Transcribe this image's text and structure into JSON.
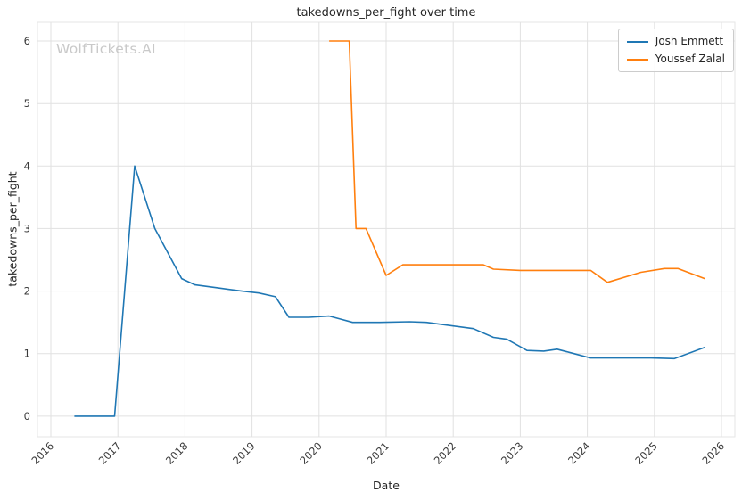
{
  "watermark": "WolfTickets.AI",
  "chart_data": {
    "type": "line",
    "title": "takedowns_per_fight over time",
    "xlabel": "Date",
    "ylabel": "takedowns_per_fight",
    "xlim": [
      2015.8,
      2026.2
    ],
    "ylim": [
      -0.33,
      6.3
    ],
    "xticks": [
      2016,
      2017,
      2018,
      2019,
      2020,
      2021,
      2022,
      2023,
      2024,
      2025,
      2026
    ],
    "yticks": [
      0,
      1,
      2,
      3,
      4,
      5,
      6
    ],
    "grid": true,
    "grid_color": "#e1e1e1",
    "legend_position": "upper right",
    "series": [
      {
        "name": "Josh Emmett",
        "color": "#1f77b4",
        "x": [
          2016.35,
          2016.6,
          2016.95,
          2017.25,
          2017.55,
          2017.95,
          2018.15,
          2018.5,
          2018.85,
          2019.1,
          2019.35,
          2019.55,
          2019.85,
          2020.15,
          2020.5,
          2020.9,
          2021.35,
          2021.6,
          2021.95,
          2022.3,
          2022.6,
          2022.8,
          2023.1,
          2023.35,
          2023.55,
          2023.8,
          2024.05,
          2024.5,
          2024.95,
          2025.3,
          2025.75
        ],
        "y": [
          0,
          0,
          0,
          4.0,
          3.0,
          2.2,
          2.1,
          2.05,
          2.0,
          1.97,
          1.91,
          1.58,
          1.58,
          1.6,
          1.5,
          1.5,
          1.51,
          1.5,
          1.45,
          1.4,
          1.26,
          1.23,
          1.05,
          1.04,
          1.07,
          1.0,
          0.93,
          0.93,
          0.93,
          0.92,
          1.1
        ]
      },
      {
        "name": "Youssef Zalal",
        "color": "#ff7f0e",
        "x": [
          2020.15,
          2020.45,
          2020.55,
          2020.7,
          2021.0,
          2021.25,
          2021.6,
          2022.0,
          2022.45,
          2022.6,
          2023.0,
          2023.55,
          2024.05,
          2024.3,
          2024.8,
          2025.15,
          2025.35,
          2025.75
        ],
        "y": [
          6.0,
          6.0,
          3.0,
          3.0,
          2.25,
          2.42,
          2.42,
          2.42,
          2.42,
          2.35,
          2.33,
          2.33,
          2.33,
          2.14,
          2.3,
          2.36,
          2.36,
          2.2
        ]
      }
    ]
  }
}
